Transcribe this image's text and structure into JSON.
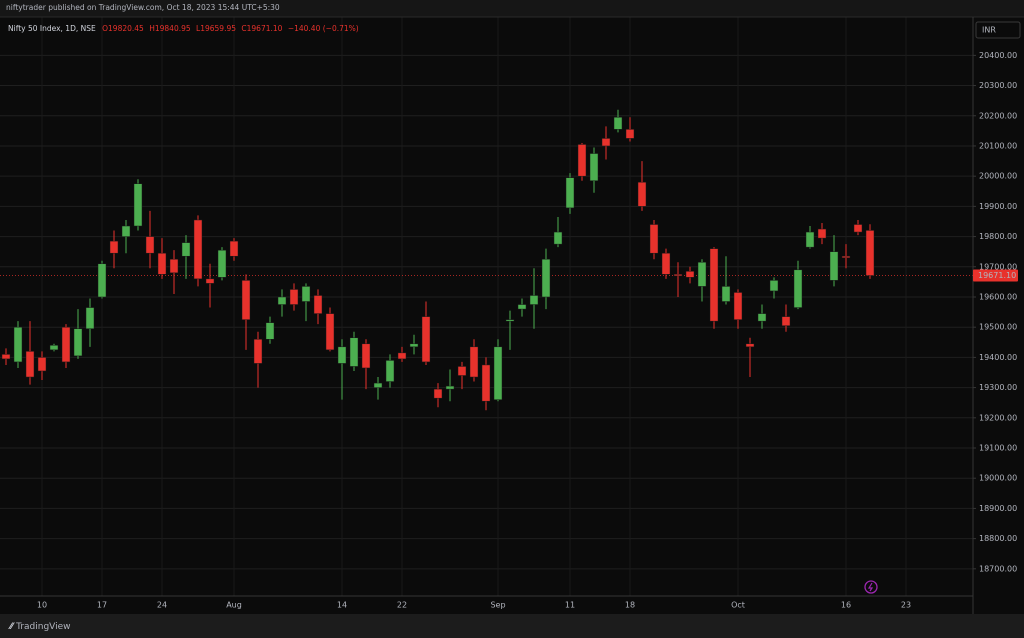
{
  "header": {
    "publisher": "niftytrader published on TradingView.com, Oct 18, 2023 15:44 UTC+5:30",
    "symbol": "Nifty 50 Index, 1D, NSE",
    "ohlc": [
      "O19820.45",
      "H19840.95",
      "L19659.95",
      "C19671.10"
    ],
    "change": "−140.40 (−0.71%)"
  },
  "currency": "INR",
  "footer": "TradingView",
  "chart_data": {
    "type": "candlestick",
    "categories": [
      null,
      null,
      null,
      "10",
      null,
      null,
      null,
      null,
      "17",
      null,
      null,
      null,
      null,
      "24",
      null,
      null,
      null,
      null,
      null,
      "Aug",
      null,
      null,
      null,
      null,
      null,
      null,
      null,
      null,
      "14",
      null,
      null,
      null,
      null,
      "22",
      null,
      null,
      null,
      null,
      null,
      null,
      null,
      "Sep",
      null,
      null,
      null,
      null,
      null,
      "11",
      null,
      null,
      null,
      null,
      "18",
      null,
      null,
      null,
      null,
      null,
      null,
      null,
      null,
      "Oct",
      null,
      null,
      null,
      null,
      null,
      null,
      null,
      null,
      "16",
      null,
      null,
      null,
      null,
      "23"
    ],
    "open": [
      19410,
      19385,
      19420,
      19400,
      19425,
      19500,
      19405,
      19495,
      19600,
      19785,
      19800,
      19835,
      19800,
      19745,
      19725,
      19735,
      19855,
      19660,
      19665,
      19785,
      19655,
      19460,
      19460,
      19575,
      19625,
      19585,
      19605,
      19545,
      19380,
      19370,
      19445,
      19300,
      19320,
      19415,
      19435,
      19535,
      19295,
      19295,
      19370,
      19435,
      19375,
      19260,
      19520,
      19560,
      19575,
      19600,
      19775,
      19895,
      20105,
      19985,
      20125,
      20155,
      20155,
      19980,
      19840,
      19745,
      19675,
      19685,
      19635,
      19760,
      19585,
      19615,
      19445,
      19520,
      19620,
      19535,
      19565,
      19765,
      19825,
      19655,
      19735,
      19840,
      19820.45,
      null,
      null,
      null
    ],
    "high": [
      19430,
      19520,
      19520,
      19420,
      19445,
      19510,
      19560,
      19595,
      19720,
      19820,
      19855,
      19990,
      19885,
      19795,
      19755,
      19805,
      19870,
      19710,
      19765,
      19795,
      19675,
      19485,
      19535,
      19625,
      19645,
      19645,
      19625,
      19565,
      19460,
      19485,
      19460,
      19335,
      19410,
      19435,
      19475,
      19585,
      19315,
      19360,
      19385,
      19460,
      19400,
      19460,
      19555,
      19595,
      19695,
      19760,
      19865,
      20010,
      20110,
      20095,
      20165,
      20220,
      20195,
      20050,
      19855,
      19760,
      19715,
      19700,
      19725,
      19765,
      19735,
      19625,
      19465,
      19575,
      19665,
      19575,
      19720,
      19835,
      19845,
      19805,
      19775,
      19855,
      19840.95,
      null,
      null,
      null
    ],
    "low": [
      19375,
      19365,
      19310,
      19325,
      19420,
      19365,
      19395,
      19435,
      19595,
      19695,
      19745,
      19820,
      19695,
      19660,
      19610,
      19660,
      19635,
      19565,
      19655,
      19720,
      19425,
      19300,
      19445,
      19535,
      19555,
      19520,
      19510,
      19420,
      19260,
      19355,
      19295,
      19260,
      19300,
      19385,
      19410,
      19375,
      19235,
      19255,
      19295,
      19320,
      19225,
      19255,
      19425,
      19535,
      19495,
      19560,
      19765,
      19875,
      19985,
      19945,
      20055,
      20145,
      20115,
      19885,
      19725,
      19660,
      19600,
      19645,
      19585,
      19495,
      19575,
      19495,
      19335,
      19495,
      19595,
      19485,
      19560,
      19760,
      19775,
      19635,
      19695,
      19805,
      19659.95,
      null,
      null,
      null
    ],
    "close": [
      19395,
      19500,
      19335,
      19355,
      19440,
      19385,
      19495,
      19565,
      19710,
      19745,
      19835,
      19975,
      19745,
      19675,
      19680,
      19780,
      19660,
      19645,
      19755,
      19735,
      19525,
      19380,
      19515,
      19600,
      19575,
      19635,
      19545,
      19425,
      19435,
      19465,
      19365,
      19315,
      19390,
      19395,
      19445,
      19385,
      19265,
      19305,
      19340,
      19335,
      19255,
      19435,
      19525,
      19575,
      19605,
      19725,
      19815,
      19995,
      20000,
      20075,
      20100,
      20195,
      20125,
      19900,
      19745,
      19675,
      19670,
      19665,
      19715,
      19520,
      19635,
      19525,
      19435,
      19545,
      19655,
      19505,
      19690,
      19815,
      19795,
      19750,
      19730,
      19815,
      19671.1,
      null,
      null,
      null
    ],
    "up_color": "#4caf50",
    "down_color": "#e8322c",
    "price_tag": "19671.10",
    "ylim": [
      18610,
      20527
    ],
    "yticks": [
      {
        "value": 18700,
        "label": "18700.00"
      },
      {
        "value": 18800,
        "label": "18800.00"
      },
      {
        "value": 18900,
        "label": "18900.00"
      },
      {
        "value": 19000,
        "label": "19000.00"
      },
      {
        "value": 19100,
        "label": "19100.00"
      },
      {
        "value": 19200,
        "label": "19200.00"
      },
      {
        "value": 19300,
        "label": "19300.00"
      },
      {
        "value": 19400,
        "label": "19400.00"
      },
      {
        "value": 19500,
        "label": "19500.00"
      },
      {
        "value": 19600,
        "label": "19600.00"
      },
      {
        "value": 19700,
        "label": "19700.00"
      },
      {
        "value": 19800,
        "label": "19800.00"
      },
      {
        "value": 19900,
        "label": "19900.00"
      },
      {
        "value": 20000,
        "label": "20000.00"
      },
      {
        "value": 20100,
        "label": "20100.00"
      },
      {
        "value": 20200,
        "label": "20200.00"
      },
      {
        "value": 20300,
        "label": "20300.00"
      },
      {
        "value": 20400,
        "label": "20400.00"
      }
    ],
    "grid": true
  }
}
